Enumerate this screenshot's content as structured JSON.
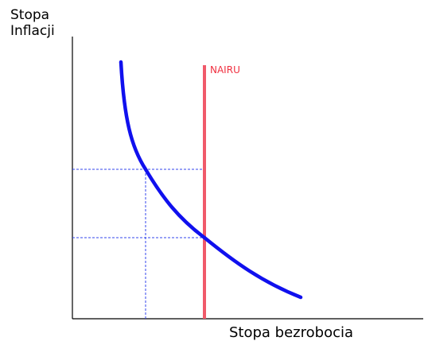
{
  "y_axis_label": [
    "Stopa",
    "Inflacji"
  ],
  "x_axis_label": "Stopa bezrobocia",
  "nairu_label": "NAIRU"
}
